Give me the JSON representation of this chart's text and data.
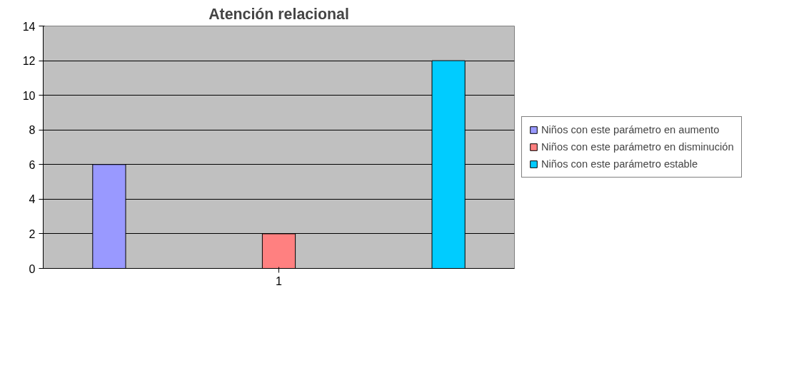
{
  "chart_data": {
    "type": "bar",
    "title": "Atención relacional",
    "categories": [
      "1"
    ],
    "series": [
      {
        "name": "Niños con este parámetro en aumento",
        "color": "#9999ff",
        "values": [
          6
        ]
      },
      {
        "name": "Niños con este parámetro en disminución",
        "color": "#ff8080",
        "values": [
          2
        ]
      },
      {
        "name": "Niños con este parámetro estable",
        "color": "#00ccff",
        "values": [
          12
        ]
      }
    ],
    "ylim": [
      0,
      14
    ],
    "yticks": [
      0,
      2,
      4,
      6,
      8,
      10,
      12,
      14
    ],
    "grid": "y",
    "legend": "right"
  }
}
